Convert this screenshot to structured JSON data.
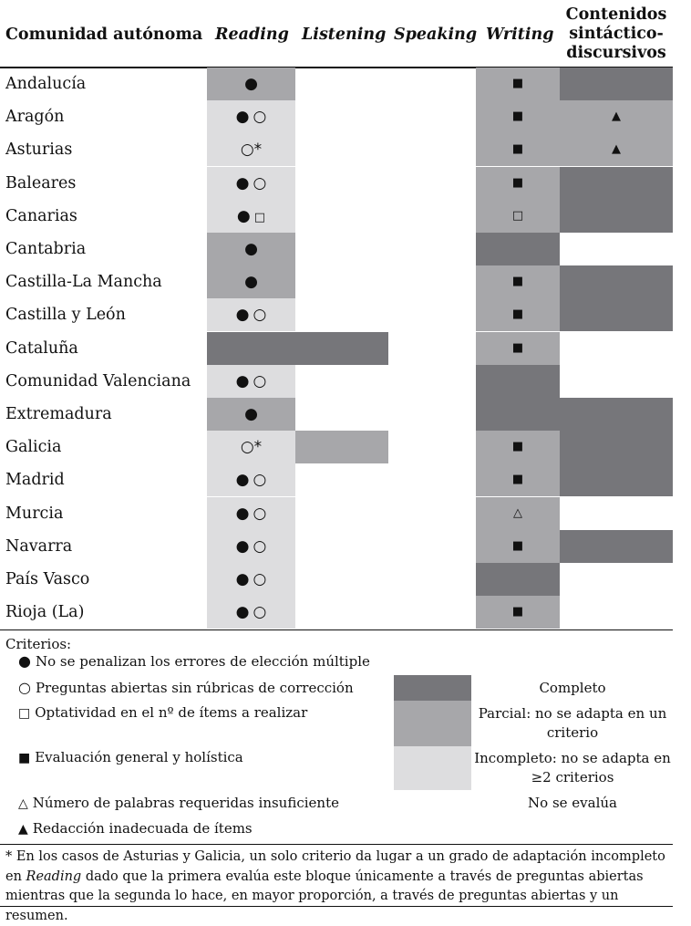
{
  "table": {
    "headers": {
      "comunidad": "Comunidad autónoma",
      "reading": "Reading",
      "listening": "Listening",
      "speaking": "Speaking",
      "writing": "Writing",
      "contenidos": [
        "Contenidos",
        "sintáctico-",
        "discursivos"
      ]
    },
    "colors": {
      "completo": "#76767a",
      "parcial": "#a7a7aa",
      "incompleto": "#dddddf",
      "none": "#ffffff"
    },
    "rows": [
      {
        "name": "Andalucía",
        "reading": {
          "level": "parcial",
          "symbols": [
            "filled-circle"
          ]
        },
        "listening": null,
        "speaking": null,
        "writing": {
          "level": "parcial",
          "symbols": [
            "filled-square"
          ]
        },
        "contenidos": {
          "level": "completo",
          "symbols": []
        }
      },
      {
        "name": "Aragón",
        "reading": {
          "level": "incompleto",
          "symbols": [
            "filled-circle",
            "open-circle"
          ]
        },
        "listening": null,
        "speaking": null,
        "writing": {
          "level": "parcial",
          "symbols": [
            "filled-square"
          ]
        },
        "contenidos": {
          "level": "parcial",
          "symbols": [
            "filled-triangle"
          ]
        }
      },
      {
        "name": "Asturias",
        "reading": {
          "level": "incompleto",
          "symbols": [
            "open-circle-star"
          ]
        },
        "listening": null,
        "speaking": null,
        "writing": {
          "level": "parcial",
          "symbols": [
            "filled-square"
          ]
        },
        "contenidos": {
          "level": "parcial",
          "symbols": [
            "filled-triangle"
          ]
        }
      },
      {
        "name": "Baleares",
        "reading": {
          "level": "incompleto",
          "symbols": [
            "filled-circle",
            "open-circle"
          ]
        },
        "listening": null,
        "speaking": null,
        "writing": {
          "level": "parcial",
          "symbols": [
            "filled-square"
          ]
        },
        "contenidos": {
          "level": "completo",
          "symbols": []
        }
      },
      {
        "name": "Canarias",
        "reading": {
          "level": "incompleto",
          "symbols": [
            "filled-circle",
            "open-square"
          ]
        },
        "listening": null,
        "speaking": null,
        "writing": {
          "level": "parcial",
          "symbols": [
            "open-square"
          ]
        },
        "contenidos": {
          "level": "completo",
          "symbols": []
        }
      },
      {
        "name": "Cantabria",
        "reading": {
          "level": "parcial",
          "symbols": [
            "filled-circle"
          ]
        },
        "listening": null,
        "speaking": null,
        "writing": {
          "level": "completo",
          "symbols": []
        },
        "contenidos": null
      },
      {
        "name": "Castilla-La Mancha",
        "reading": {
          "level": "parcial",
          "symbols": [
            "filled-circle"
          ]
        },
        "listening": null,
        "speaking": null,
        "writing": {
          "level": "parcial",
          "symbols": [
            "filled-square"
          ]
        },
        "contenidos": {
          "level": "completo",
          "symbols": []
        }
      },
      {
        "name": "Castilla y León",
        "reading": {
          "level": "incompleto",
          "symbols": [
            "filled-circle",
            "open-circle"
          ]
        },
        "listening": null,
        "speaking": null,
        "writing": {
          "level": "parcial",
          "symbols": [
            "filled-square"
          ]
        },
        "contenidos": {
          "level": "completo",
          "symbols": []
        }
      },
      {
        "name": "Cataluña",
        "reading": {
          "level": "completo",
          "symbols": []
        },
        "listening": {
          "level": "completo",
          "symbols": []
        },
        "speaking": null,
        "writing": {
          "level": "parcial",
          "symbols": [
            "filled-square"
          ]
        },
        "contenidos": null
      },
      {
        "name": "Comunidad Valenciana",
        "reading": {
          "level": "incompleto",
          "symbols": [
            "filled-circle",
            "open-circle"
          ]
        },
        "listening": null,
        "speaking": null,
        "writing": {
          "level": "completo",
          "symbols": []
        },
        "contenidos": null
      },
      {
        "name": "Extremadura",
        "reading": {
          "level": "parcial",
          "symbols": [
            "filled-circle"
          ]
        },
        "listening": null,
        "speaking": null,
        "writing": {
          "level": "completo",
          "symbols": []
        },
        "contenidos": {
          "level": "completo",
          "symbols": []
        }
      },
      {
        "name": "Galicia",
        "reading": {
          "level": "incompleto",
          "symbols": [
            "open-circle-star"
          ]
        },
        "listening": {
          "level": "parcial",
          "symbols": []
        },
        "speaking": null,
        "writing": {
          "level": "parcial",
          "symbols": [
            "filled-square"
          ]
        },
        "contenidos": {
          "level": "completo",
          "symbols": []
        }
      },
      {
        "name": "Madrid",
        "reading": {
          "level": "incompleto",
          "symbols": [
            "filled-circle",
            "open-circle"
          ]
        },
        "listening": null,
        "speaking": null,
        "writing": {
          "level": "parcial",
          "symbols": [
            "filled-square"
          ]
        },
        "contenidos": {
          "level": "completo",
          "symbols": []
        }
      },
      {
        "name": "Murcia",
        "reading": {
          "level": "incompleto",
          "symbols": [
            "filled-circle",
            "open-circle"
          ]
        },
        "listening": null,
        "speaking": null,
        "writing": {
          "level": "parcial",
          "symbols": [
            "open-triangle"
          ]
        },
        "contenidos": null
      },
      {
        "name": "Navarra",
        "reading": {
          "level": "incompleto",
          "symbols": [
            "filled-circle",
            "open-circle"
          ]
        },
        "listening": null,
        "speaking": null,
        "writing": {
          "level": "parcial",
          "symbols": [
            "filled-square"
          ]
        },
        "contenidos": {
          "level": "completo",
          "symbols": []
        }
      },
      {
        "name": "País Vasco",
        "reading": {
          "level": "incompleto",
          "symbols": [
            "filled-circle",
            "open-circle"
          ]
        },
        "listening": null,
        "speaking": null,
        "writing": {
          "level": "completo",
          "symbols": []
        },
        "contenidos": null
      },
      {
        "name": "Rioja (La)",
        "reading": {
          "level": "incompleto",
          "symbols": [
            "filled-circle",
            "open-circle"
          ]
        },
        "listening": null,
        "speaking": null,
        "writing": {
          "level": "parcial",
          "symbols": [
            "filled-square"
          ]
        },
        "contenidos": null
      }
    ]
  },
  "legend": {
    "title": "Criterios:",
    "criteria": [
      {
        "icon": "filled-circle",
        "glyph": "●",
        "text": "No se penalizan los errores de elección múltiple"
      },
      {
        "icon": "open-circle",
        "glyph": "○",
        "text": "Preguntas abiertas sin rúbricas de corrección"
      },
      {
        "icon": "open-square",
        "glyph": "□",
        "text": "Optatividad en el nº de ítems a realizar"
      },
      {
        "icon": "filled-square",
        "glyph": "■",
        "text": "Evaluación general y holística"
      },
      {
        "icon": "open-triangle",
        "glyph": "△",
        "text": "Número de palabras requeridas insuficiente"
      },
      {
        "icon": "filled-triangle",
        "glyph": "▲",
        "text": "Redacción inadecuada de ítems"
      }
    ],
    "shading": [
      {
        "level": "completo",
        "label": "Completo"
      },
      {
        "level": "parcial",
        "label": "Parcial: no se adapta en un criterio"
      },
      {
        "level": "incompleto",
        "label": "Incompleto: no se adapta en ≥2 criterios"
      },
      {
        "level": "none",
        "label": "No se evalúa"
      }
    ]
  },
  "footnote": {
    "part1": "* En los casos de Asturias y Galicia, un solo criterio da lugar a un grado de adaptación incompleto en ",
    "italic": "Reading",
    "part2": " dado que la primera evalúa este bloque únicamente a través de preguntas abiertas mientras que la segunda lo hace, en mayor proporción, a través de preguntas abiertas y un resumen."
  }
}
